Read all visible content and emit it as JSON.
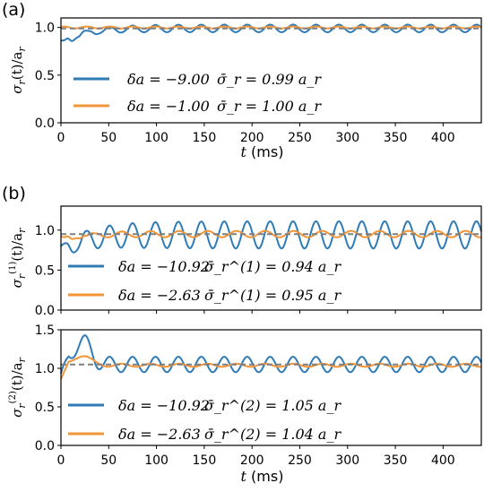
{
  "colors": {
    "blue": "#2f7bb6",
    "orange": "#f0953a",
    "dash": "#7f7f7f",
    "axis": "#000000"
  },
  "xlabel": {
    "var": "t",
    "unit": "(ms)"
  },
  "chart_data": [
    {
      "panel_label": "(a)",
      "type": "line",
      "ylabel": "σ_r(t)/a_r",
      "xlim": [
        0,
        440
      ],
      "ylim": [
        0.0,
        1.1
      ],
      "xticks": [
        0,
        50,
        100,
        150,
        200,
        250,
        300,
        350,
        400
      ],
      "yticks": [
        0.0,
        0.5,
        1.0
      ],
      "series": [
        {
          "name": "δa = −9.00   σ̄_r = 0.99 a_r",
          "color": "blue",
          "mean": 0.99,
          "amp": 0.04,
          "period_ms": 24,
          "transient": "dip",
          "dip_value": 0.82
        },
        {
          "name": "δa = −1.00   σ̄_r = 1.00 a_r",
          "color": "orange",
          "mean": 1.0,
          "amp": 0.01,
          "period_ms": 24,
          "transient": "none"
        }
      ],
      "reference_line": 0.99,
      "legend": "lower-left",
      "legend_lines": [
        {
          "da": "δa = −9.00",
          "mean": "σ̄_r = 0.99 a_r"
        },
        {
          "da": "δa = −1.00",
          "mean": "σ̄_r = 1.00 a_r"
        }
      ]
    },
    {
      "panel_label": "(b)",
      "type": "line",
      "ylabel": "σ_r^(1)(t)/a_r",
      "xlim": [
        0,
        440
      ],
      "ylim": [
        0.0,
        1.3
      ],
      "xticks": [
        0,
        50,
        100,
        150,
        200,
        250,
        300,
        350,
        400
      ],
      "yticks": [
        0.0,
        0.5,
        1.0
      ],
      "series": [
        {
          "name": "δa = −10.92   σ̄_r^(1) = 0.94 a_r",
          "color": "blue",
          "mean": 0.94,
          "amp": 0.17,
          "period_ms": 24,
          "transient": "dip",
          "dip_value": 0.72
        },
        {
          "name": "δa = −2.63   σ̄_r^(1) = 0.95 a_r",
          "color": "orange",
          "mean": 0.95,
          "amp": 0.04,
          "period_ms": 30,
          "transient": "dip",
          "dip_value": 0.88
        }
      ],
      "reference_line": 0.95,
      "legend": "lower-left",
      "legend_lines": [
        {
          "da": "δa = −10.92",
          "mean": "σ̄_r^(1) = 0.94 a_r"
        },
        {
          "da": "δa = −2.63",
          "mean": "σ̄_r^(1) = 0.95 a_r"
        }
      ]
    },
    {
      "panel_label": "",
      "type": "line",
      "ylabel": "σ_r^(2)(t)/a_r",
      "xlim": [
        0,
        440
      ],
      "ylim": [
        0.0,
        1.5
      ],
      "xticks": [
        0,
        50,
        100,
        150,
        200,
        250,
        300,
        350,
        400
      ],
      "yticks": [
        0.0,
        0.5,
        1.0,
        1.5
      ],
      "series": [
        {
          "name": "δa = −10.92   σ̄_r^(2) = 1.05 a_r",
          "color": "blue",
          "mean": 1.05,
          "amp": 0.1,
          "period_ms": 24,
          "transient": "peak",
          "peak_value": 1.36
        },
        {
          "name": "δa = −2.63   σ̄_r^(2) = 1.04 a_r",
          "color": "orange",
          "mean": 1.04,
          "amp": 0.02,
          "period_ms": 30,
          "transient": "peak",
          "peak_value": 1.17
        }
      ],
      "reference_line": 1.05,
      "legend": "lower-left",
      "legend_lines": [
        {
          "da": "δa = −10.92",
          "mean": "σ̄_r^(2) = 1.05 a_r"
        },
        {
          "da": "δa = −2.63",
          "mean": "σ̄_r^(2) = 1.04 a_r"
        }
      ]
    }
  ]
}
